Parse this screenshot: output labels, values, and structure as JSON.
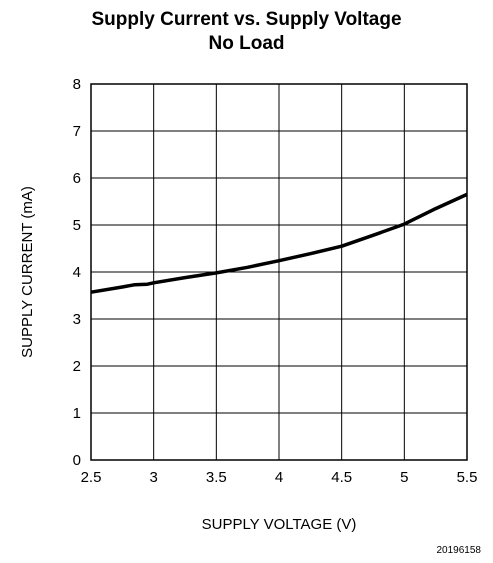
{
  "chart_data": {
    "type": "line",
    "title": "Supply Current vs. Supply Voltage",
    "subtitle": "No Load",
    "xlabel": "SUPPLY VOLTAGE (V)",
    "ylabel": "SUPPLY CURRENT (mA)",
    "xlim": [
      2.5,
      5.5
    ],
    "ylim": [
      0,
      8
    ],
    "xticks": [
      "2.5",
      "3",
      "3.5",
      "4",
      "4.5",
      "5",
      "5.5"
    ],
    "yticks": [
      "0",
      "1",
      "2",
      "3",
      "4",
      "5",
      "6",
      "7",
      "8"
    ],
    "grid": true,
    "legend": "none",
    "series": [
      {
        "x": [
          2.5,
          2.75,
          2.85,
          2.95,
          3.0,
          3.25,
          3.5,
          3.75,
          4.0,
          4.25,
          4.5,
          4.75,
          5.0,
          5.25,
          5.5
        ],
        "y": [
          3.57,
          3.68,
          3.73,
          3.74,
          3.77,
          3.88,
          3.98,
          4.1,
          4.24,
          4.39,
          4.55,
          4.78,
          5.02,
          5.35,
          5.65
        ],
        "color": "#000000"
      }
    ],
    "figure_code": "20196158"
  }
}
